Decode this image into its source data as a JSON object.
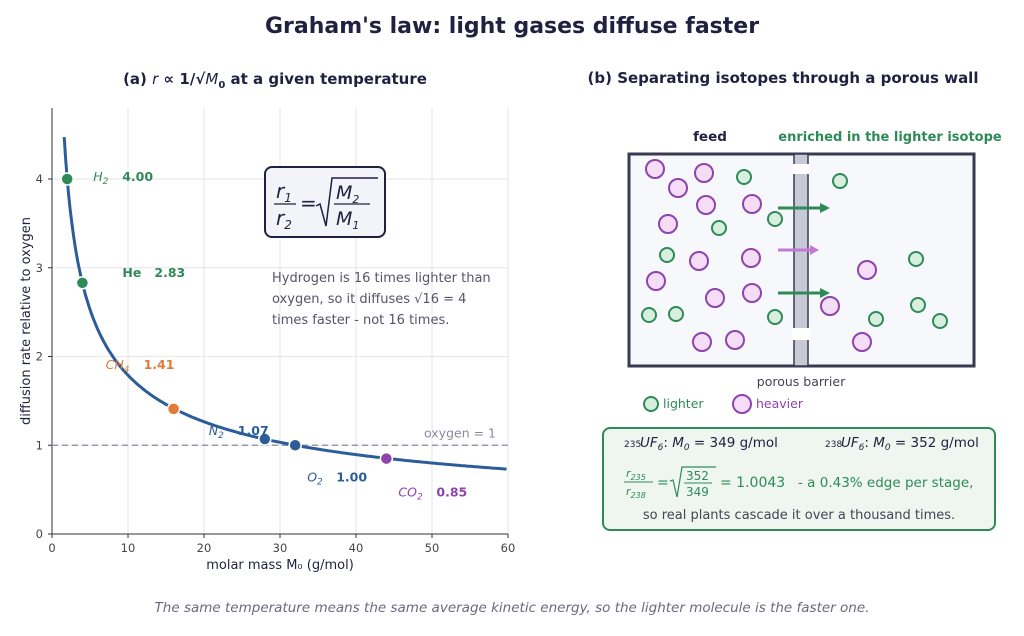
{
  "title": "Graham's law: light gases diffuse faster",
  "panel_a": {
    "subtitle_prefix": "(a) ",
    "subtitle_rest": " at a given temperature",
    "xlabel": "molar mass  M₀  (g/mol)",
    "ylabel": "diffusion rate relative to oxygen",
    "x_ticks": [
      "0",
      "10",
      "20",
      "30",
      "40",
      "50",
      "60"
    ],
    "y_ticks": [
      "0",
      "1",
      "2",
      "3",
      "4"
    ],
    "reference_label": "oxygen = 1",
    "note_line1": "Hydrogen is 16 times lighter than",
    "note_line2_pre": "oxygen, so it diffuses ",
    "note_line2_post": " times faster - not 16 times.",
    "sqrt_expr": "√16 = 4"
  },
  "chart_data": {
    "type": "line",
    "xlim": [
      0,
      60
    ],
    "ylim": [
      0,
      4.8
    ],
    "grid": true,
    "curve": "rate = sqrt(32 / M0)",
    "points": [
      {
        "gas": "H2",
        "mass": 2,
        "rate": 4.0,
        "value_label": "4.00",
        "color": "#2e8b57"
      },
      {
        "gas": "He",
        "mass": 4,
        "rate": 2.83,
        "value_label": "2.83",
        "color": "#2e8b57"
      },
      {
        "gas": "CH4",
        "mass": 16,
        "rate": 1.41,
        "value_label": "1.41",
        "color": "#e07b39"
      },
      {
        "gas": "N2",
        "mass": 28,
        "rate": 1.07,
        "value_label": "1.07",
        "color": "#2c5d99"
      },
      {
        "gas": "O2",
        "mass": 32,
        "rate": 1.0,
        "value_label": "1.00",
        "color": "#2c5d99"
      },
      {
        "gas": "CO2",
        "mass": 44,
        "rate": 0.85,
        "value_label": "0.85",
        "color": "#8e44ad"
      }
    ],
    "reference_y": 1
  },
  "panel_b": {
    "subtitle": "(b) Separating isotopes through a porous wall",
    "feed_label": "feed",
    "enriched_label": "enriched in the lighter isotope",
    "barrier_label": "porous barrier",
    "legend_light": "lighter",
    "legend_heavy": "heavier",
    "u235_label": "235UF6: M0 = 349 g/mol",
    "u238_label": "238UF6: M0 = 352 g/mol",
    "ratio_value": "= 1.0043",
    "ratio_text": "-  a 0.43% edge per stage,",
    "cascade_text": "so real plants cascade it over a thousand times.",
    "colors": {
      "light": "#2e8b57",
      "heavy": "#8e44ad"
    }
  },
  "caption": "The same temperature means the same average kinetic energy, so the lighter molecule is the faster one."
}
